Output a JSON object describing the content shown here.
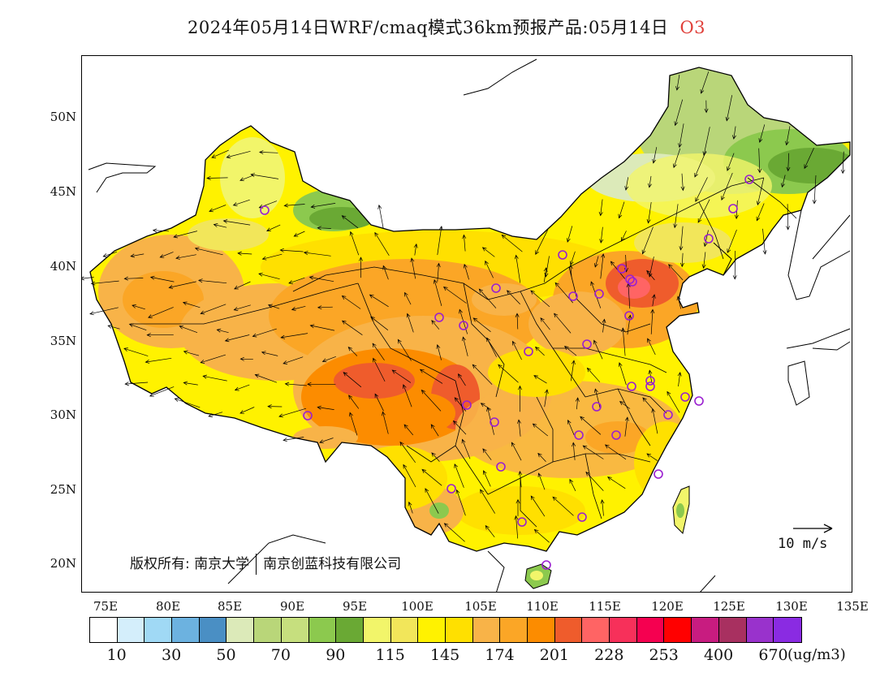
{
  "title": {
    "text": "2024年05月14日WRF/cmaq模式36km预报产品:05月14日",
    "pollutant": "O3"
  },
  "axes": {
    "lat_labels": [
      "50N",
      "45N",
      "40N",
      "35N",
      "30N",
      "25N",
      "20N"
    ],
    "lon_labels": [
      "75E",
      "80E",
      "85E",
      "90E",
      "95E",
      "100E",
      "105E",
      "110E",
      "115E",
      "120E",
      "125E",
      "130E",
      "135E"
    ]
  },
  "copyright": {
    "prefix": "版权所有:",
    "org1": "南京大学",
    "org2": "南京创蓝科技有限公司"
  },
  "wind_reference": {
    "label": "10 m/s",
    "speed": 10
  },
  "colorbar": {
    "colors": [
      "#ffffff",
      "#d4eefb",
      "#a0d9f5",
      "#6cb2e0",
      "#4a8fc4",
      "#dceab9",
      "#b9d679",
      "#c6df7e",
      "#8cc94e",
      "#6aa934",
      "#f2f56a",
      "#f2e65a",
      "#fff200",
      "#ffe000",
      "#f8b348",
      "#fba626",
      "#fc8c00",
      "#ef5c2c",
      "#ff6464",
      "#f7305a",
      "#f50050",
      "#ff0000",
      "#c81c80",
      "#a83060",
      "#9932cc",
      "#8a2be2"
    ],
    "labels": [
      "10",
      "30",
      "50",
      "70",
      "90",
      "115",
      "145",
      "174",
      "201",
      "228",
      "253",
      "400",
      "670"
    ],
    "unit": "(ug/m3)"
  },
  "stations": 34
}
